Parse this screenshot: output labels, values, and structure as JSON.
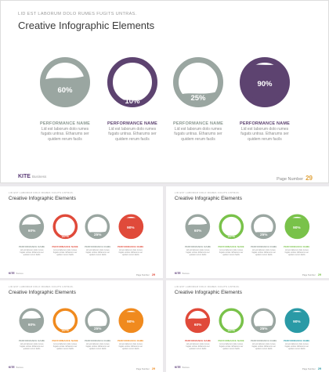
{
  "kicker": "LID EST LABORUM DOLO RUMES FUGITS UNTRAS.",
  "title": "Creative Infographic Elements",
  "logo": {
    "brand": "KITE",
    "sub": "Business"
  },
  "page_label": "Page Number",
  "page_number": "29",
  "item_name": "PERFORMANCE NAME",
  "item_desc": "Lid est laborum dolo rumes fugats untras. Etharums ser quidem rerum facils",
  "main": {
    "items": [
      {
        "percent_label": "60%",
        "value": 0.6,
        "color": "#9aa6a1",
        "ring": "#9aa6a1",
        "name_color": "#8b9891"
      },
      {
        "percent_label": "10%",
        "value": 0.1,
        "color": "#5d4370",
        "ring": "#5d4370",
        "name_color": "#5d4370"
      },
      {
        "percent_label": "25%",
        "value": 0.25,
        "color": "#9aa6a1",
        "ring": "#9aa6a1",
        "name_color": "#8b9891"
      },
      {
        "percent_label": "90%",
        "value": 0.9,
        "color": "#5d4370",
        "ring": "#5d4370",
        "name_color": "#5d4370"
      }
    ]
  },
  "minis": [
    {
      "accent": "#e04a3a",
      "items": [
        {
          "percent_label": "60%",
          "value": 0.6,
          "color": "#9aa6a1"
        },
        {
          "percent_label": "10%",
          "value": 0.1,
          "color": "#e04a3a"
        },
        {
          "percent_label": "25%",
          "value": 0.25,
          "color": "#9aa6a1"
        },
        {
          "percent_label": "90%",
          "value": 0.9,
          "color": "#e04a3a"
        }
      ]
    },
    {
      "accent": "#79c24a",
      "items": [
        {
          "percent_label": "60%",
          "value": 0.6,
          "color": "#9aa6a1"
        },
        {
          "percent_label": "10%",
          "value": 0.1,
          "color": "#79c24a"
        },
        {
          "percent_label": "25%",
          "value": 0.25,
          "color": "#9aa6a1"
        },
        {
          "percent_label": "90%",
          "value": 0.9,
          "color": "#79c24a"
        }
      ]
    },
    {
      "accent": "#f08a1e",
      "items": [
        {
          "percent_label": "60%",
          "value": 0.6,
          "color": "#9aa6a1"
        },
        {
          "percent_label": "10%",
          "value": 0.1,
          "color": "#f08a1e"
        },
        {
          "percent_label": "25%",
          "value": 0.25,
          "color": "#9aa6a1"
        },
        {
          "percent_label": "90%",
          "value": 0.9,
          "color": "#f08a1e"
        }
      ]
    },
    {
      "accent": "#2a9aa6",
      "items": [
        {
          "percent_label": "60%",
          "value": 0.6,
          "color": "#e04a3a"
        },
        {
          "percent_label": "10%",
          "value": 0.1,
          "color": "#79c24a"
        },
        {
          "percent_label": "25%",
          "value": 0.25,
          "color": "#9aa6a1"
        },
        {
          "percent_label": "90%",
          "value": 0.9,
          "color": "#2a9aa6"
        }
      ]
    }
  ]
}
